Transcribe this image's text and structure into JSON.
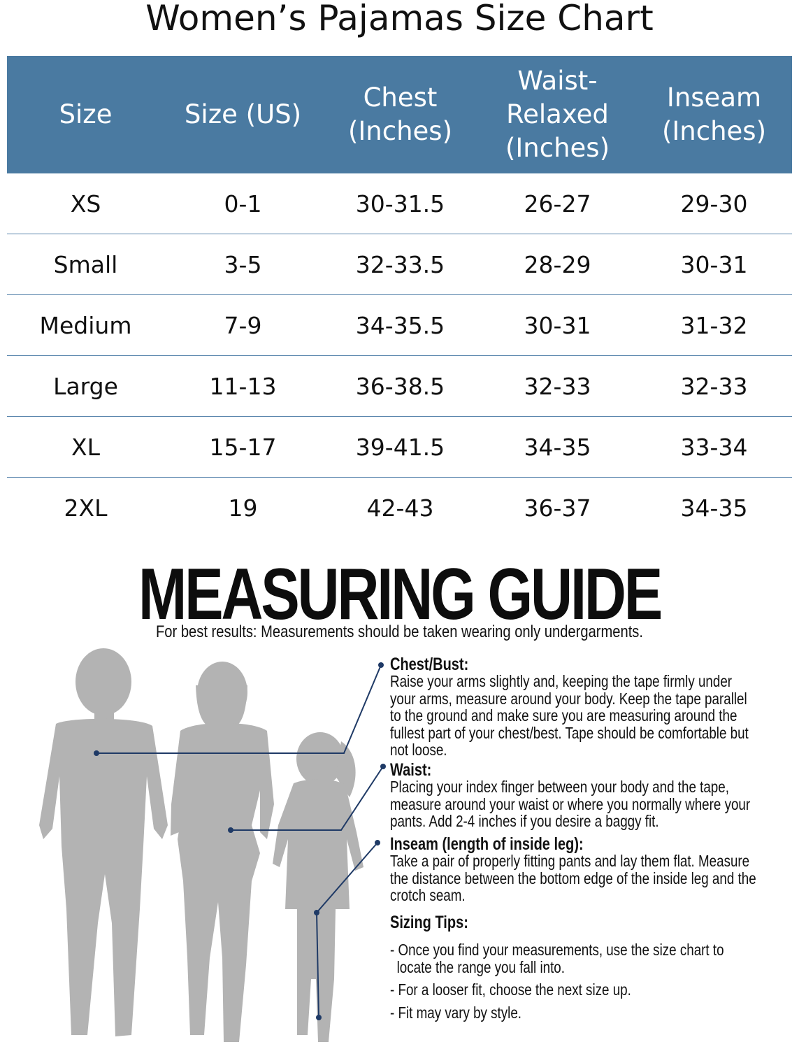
{
  "title": "Women’s Pajamas Size Chart",
  "table": {
    "headers": [
      "Size",
      "Size (US)",
      "Chest\n(Inches)",
      "Waist-\nRelaxed\n(Inches)",
      "Inseam\n(Inches)"
    ],
    "rows": [
      [
        "XS",
        "0-1",
        "30-31.5",
        "26-27",
        "29-30"
      ],
      [
        "Small",
        "3-5",
        "32-33.5",
        "28-29",
        "30-31"
      ],
      [
        "Medium",
        "7-9",
        "34-35.5",
        "30-31",
        "31-32"
      ],
      [
        "Large",
        "11-13",
        "36-38.5",
        "32-33",
        "32-33"
      ],
      [
        "XL",
        "15-17",
        "39-41.5",
        "34-35",
        "33-34"
      ],
      [
        "2XL",
        "19",
        "42-43",
        "36-37",
        "34-35"
      ]
    ]
  },
  "guide": {
    "title": "MEASURING GUIDE",
    "subtitle": "For best results: Measurements should be taken wearing only undergarments.",
    "chest": {
      "heading": "Chest/Bust:",
      "text": "Raise your arms slightly and, keeping the tape firmly under your arms, measure around your body. Keep the tape parallel to the ground and make sure you are measuring around the fullest part of your chest/best. Tape should be comfortable but not loose."
    },
    "waist": {
      "heading": "Waist:",
      "text": "Placing your index finger between your body and the tape, measure around your waist or where you normally where your pants. Add 2-4 inches if you desire a baggy fit."
    },
    "inseam": {
      "heading": "Inseam (length of inside leg):",
      "text": "Take a pair of properly fitting pants and lay them flat. Measure the distance between the bottom edge of the inside leg and the crotch seam."
    },
    "tips": {
      "heading": "Sizing Tips:",
      "items": [
        "Once you find your measurements, use the size chart to locate the range you fall into.",
        "For a looser fit, choose the next size up.",
        "Fit may vary by style."
      ]
    }
  },
  "colors": {
    "header_bg": "#4a7aa1",
    "row_divider": "#5a86ad",
    "silhouette": "#b3b3b3",
    "pointer_line": "#1f3a66"
  }
}
